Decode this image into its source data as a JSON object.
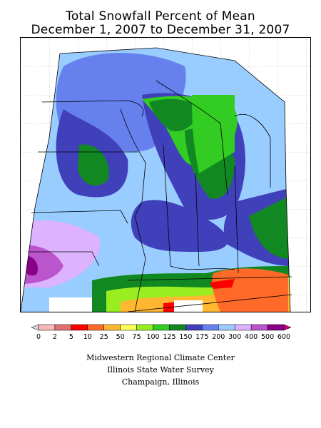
{
  "title": {
    "line1": "Total Snowfall Percent of Mean",
    "line2": "December 1, 2007 to December 31, 2007"
  },
  "legend": {
    "labels": [
      "0",
      "2",
      "5",
      "10",
      "25",
      "50",
      "75",
      "100",
      "125",
      "150",
      "175",
      "200",
      "300",
      "400",
      "500",
      "600"
    ],
    "colors": [
      "#d8d8d8",
      "#f7b8b8",
      "#e07070",
      "#ff0000",
      "#ff6a28",
      "#ffb830",
      "#ffff55",
      "#99ee22",
      "#33cc22",
      "#118822",
      "#4040bb",
      "#6680ee",
      "#99ccff",
      "#ddb3ff",
      "#bb55cc",
      "#880088",
      "#cc0088"
    ]
  },
  "credits": {
    "line1": "Midwestern Regional Climate Center",
    "line2": "Illinois State Water Survey",
    "line3": "Champaign, Illinois"
  }
}
